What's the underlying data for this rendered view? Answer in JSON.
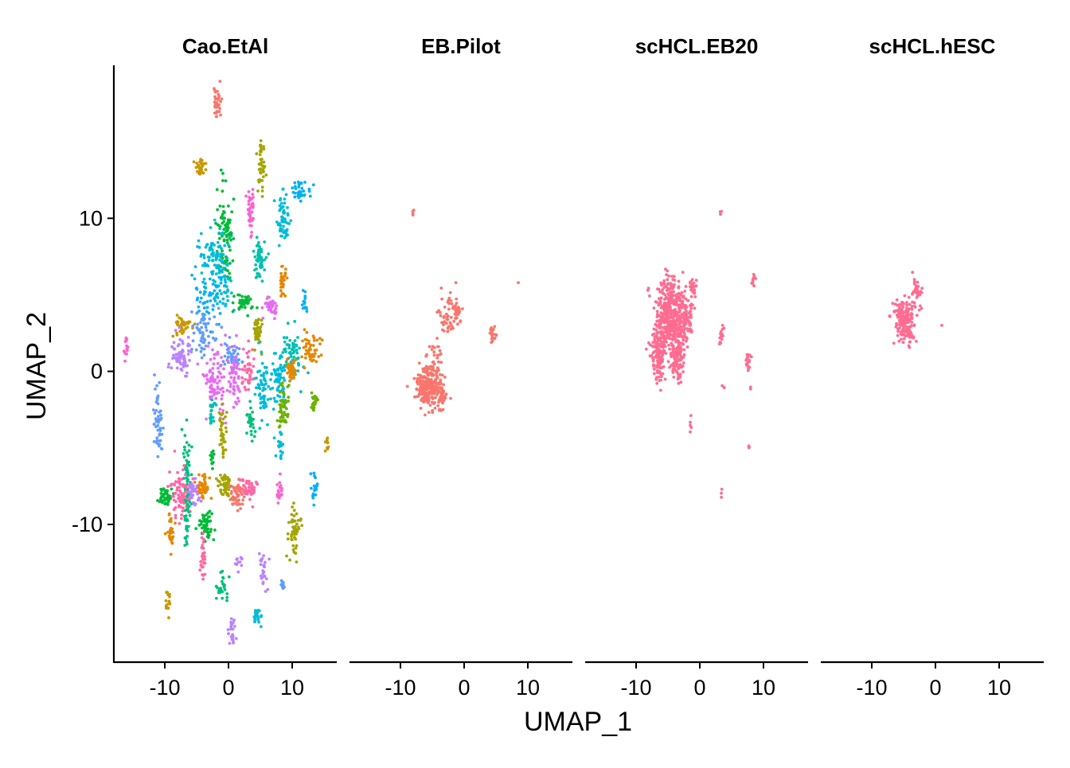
{
  "chart_data": {
    "type": "scatter",
    "xlabel": "UMAP_1",
    "ylabel": "UMAP_2",
    "xlim": [
      -18,
      17
    ],
    "ylim": [
      -19,
      20
    ],
    "x_ticks": [
      -10,
      0,
      10
    ],
    "x_tick_labels": [
      "-10",
      "0",
      "10"
    ],
    "y_ticks": [
      10,
      0,
      -10
    ],
    "y_tick_labels": [
      "10",
      "0",
      "-10"
    ],
    "grid": false,
    "legend": "none",
    "palette": [
      "#F8766D",
      "#E58700",
      "#C99800",
      "#A3A500",
      "#6BB100",
      "#00BA38",
      "#00BF7D",
      "#00C0AF",
      "#00BCD8",
      "#00B0F6",
      "#619CFF",
      "#B983FF",
      "#E76BF3",
      "#FD61D1",
      "#FF67A4"
    ],
    "panels": [
      {
        "title": "Cao.EtAl",
        "clusters": [
          {
            "x": -1.8,
            "y": 17.5,
            "sx": 0.3,
            "sy": 0.6,
            "n": 40,
            "color": "#F8766D"
          },
          {
            "x": -4.5,
            "y": 13.3,
            "sx": 0.6,
            "sy": 0.3,
            "n": 30,
            "color": "#C99800"
          },
          {
            "x": 5.2,
            "y": 13.5,
            "sx": 0.3,
            "sy": 0.8,
            "n": 40,
            "color": "#A3A500"
          },
          {
            "x": 11.0,
            "y": 11.8,
            "sx": 0.8,
            "sy": 0.3,
            "n": 40,
            "color": "#00B0F6"
          },
          {
            "x": 3.5,
            "y": 10.5,
            "sx": 0.3,
            "sy": 0.7,
            "n": 40,
            "color": "#FD61D1"
          },
          {
            "x": -0.5,
            "y": 9.0,
            "sx": 0.6,
            "sy": 1.5,
            "n": 90,
            "color": "#00BA38"
          },
          {
            "x": 8.5,
            "y": 9.8,
            "sx": 0.5,
            "sy": 0.8,
            "n": 60,
            "color": "#00BCD8"
          },
          {
            "x": 4.8,
            "y": 7.3,
            "sx": 0.5,
            "sy": 0.7,
            "n": 50,
            "color": "#00C0AF"
          },
          {
            "x": -2.5,
            "y": 7.5,
            "sx": 1.2,
            "sy": 1.0,
            "n": 70,
            "color": "#00BCD8"
          },
          {
            "x": -0.8,
            "y": 6.0,
            "sx": 0.7,
            "sy": 1.0,
            "n": 50,
            "color": "#00BCD8"
          },
          {
            "x": 8.5,
            "y": 6.0,
            "sx": 0.3,
            "sy": 0.6,
            "n": 30,
            "color": "#E58700"
          },
          {
            "x": -3.5,
            "y": 5.0,
            "sx": 1.5,
            "sy": 1.0,
            "n": 50,
            "color": "#00B0F6"
          },
          {
            "x": 2.5,
            "y": 4.5,
            "sx": 0.8,
            "sy": 0.3,
            "n": 40,
            "color": "#00BA38"
          },
          {
            "x": 6.5,
            "y": 4.2,
            "sx": 0.6,
            "sy": 0.3,
            "n": 40,
            "color": "#E76BF3"
          },
          {
            "x": 12.0,
            "y": 4.5,
            "sx": 0.2,
            "sy": 0.3,
            "n": 15,
            "color": "#00B0F6"
          },
          {
            "x": -7.0,
            "y": 3.0,
            "sx": 0.8,
            "sy": 0.3,
            "n": 40,
            "color": "#C99800"
          },
          {
            "x": -4.0,
            "y": 2.5,
            "sx": 1.0,
            "sy": 0.8,
            "n": 60,
            "color": "#619CFF"
          },
          {
            "x": 4.5,
            "y": 2.5,
            "sx": 0.3,
            "sy": 0.6,
            "n": 40,
            "color": "#A3A500"
          },
          {
            "x": -7.5,
            "y": 1.0,
            "sx": 0.8,
            "sy": 0.6,
            "n": 80,
            "color": "#B983FF"
          },
          {
            "x": 0.5,
            "y": 1.0,
            "sx": 0.8,
            "sy": 0.6,
            "n": 50,
            "color": "#619CFF"
          },
          {
            "x": 10.0,
            "y": 1.0,
            "sx": 0.8,
            "sy": 0.8,
            "n": 60,
            "color": "#00C0AF"
          },
          {
            "x": 13.0,
            "y": 1.5,
            "sx": 0.8,
            "sy": 0.5,
            "n": 50,
            "color": "#E58700"
          },
          {
            "x": -16.0,
            "y": 1.5,
            "sx": 0.2,
            "sy": 0.4,
            "n": 15,
            "color": "#FD61D1"
          },
          {
            "x": -2.0,
            "y": -0.8,
            "sx": 0.9,
            "sy": 1.2,
            "n": 90,
            "color": "#E76BF3"
          },
          {
            "x": 1.0,
            "y": -0.5,
            "sx": 0.5,
            "sy": 1.0,
            "n": 50,
            "color": "#E76BF3"
          },
          {
            "x": 5.5,
            "y": -1.0,
            "sx": 0.6,
            "sy": 1.2,
            "n": 60,
            "color": "#00BCD8"
          },
          {
            "x": 3.0,
            "y": 0.0,
            "sx": 0.5,
            "sy": 0.8,
            "n": 40,
            "color": "#FF67A4"
          },
          {
            "x": 8.0,
            "y": -0.5,
            "sx": 0.5,
            "sy": 1.0,
            "n": 60,
            "color": "#00BCD8"
          },
          {
            "x": 8.5,
            "y": -2.5,
            "sx": 0.5,
            "sy": 0.7,
            "n": 50,
            "color": "#6BB100"
          },
          {
            "x": 10.0,
            "y": 0.0,
            "sx": 0.5,
            "sy": 0.4,
            "n": 40,
            "color": "#E58700"
          },
          {
            "x": 13.5,
            "y": -2.0,
            "sx": 0.3,
            "sy": 0.4,
            "n": 20,
            "color": "#6BB100"
          },
          {
            "x": 15.5,
            "y": -4.8,
            "sx": 0.15,
            "sy": 0.3,
            "n": 10,
            "color": "#C99800"
          },
          {
            "x": -11.0,
            "y": -3.5,
            "sx": 0.4,
            "sy": 1.0,
            "n": 50,
            "color": "#619CFF"
          },
          {
            "x": -2.5,
            "y": -2.5,
            "sx": 0.3,
            "sy": 0.4,
            "n": 20,
            "color": "#00C0AF"
          },
          {
            "x": -1.0,
            "y": -4.0,
            "sx": 0.3,
            "sy": 0.8,
            "n": 40,
            "color": "#A3A500"
          },
          {
            "x": 3.5,
            "y": -3.5,
            "sx": 0.3,
            "sy": 0.8,
            "n": 30,
            "color": "#00BF7D"
          },
          {
            "x": 8.0,
            "y": -5.0,
            "sx": 0.3,
            "sy": 0.5,
            "n": 20,
            "color": "#00BCD8"
          },
          {
            "x": -6.5,
            "y": -6.5,
            "sx": 0.3,
            "sy": 1.2,
            "n": 50,
            "color": "#00BF7D"
          },
          {
            "x": -2.5,
            "y": -5.5,
            "sx": 0.2,
            "sy": 0.3,
            "n": 15,
            "color": "#00BA38"
          },
          {
            "x": -10.0,
            "y": -8.2,
            "sx": 0.6,
            "sy": 0.3,
            "n": 40,
            "color": "#00BA38"
          },
          {
            "x": -7.5,
            "y": -8.0,
            "sx": 0.8,
            "sy": 0.8,
            "n": 80,
            "color": "#FF67A4"
          },
          {
            "x": -5.5,
            "y": -8.0,
            "sx": 0.6,
            "sy": 0.5,
            "n": 40,
            "color": "#B983FF"
          },
          {
            "x": -4.0,
            "y": -7.5,
            "sx": 0.5,
            "sy": 0.4,
            "n": 40,
            "color": "#E58700"
          },
          {
            "x": -0.5,
            "y": -7.5,
            "sx": 0.6,
            "sy": 0.5,
            "n": 50,
            "color": "#A3A500"
          },
          {
            "x": 1.5,
            "y": -8.0,
            "sx": 0.6,
            "sy": 0.5,
            "n": 50,
            "color": "#F8766D"
          },
          {
            "x": 3.5,
            "y": -7.8,
            "sx": 0.6,
            "sy": 0.4,
            "n": 40,
            "color": "#FF67A4"
          },
          {
            "x": 8.0,
            "y": -7.8,
            "sx": 0.3,
            "sy": 0.5,
            "n": 20,
            "color": "#FD61D1"
          },
          {
            "x": 13.5,
            "y": -7.5,
            "sx": 0.3,
            "sy": 0.4,
            "n": 20,
            "color": "#00B0F6"
          },
          {
            "x": -9.0,
            "y": -10.8,
            "sx": 0.3,
            "sy": 0.6,
            "n": 30,
            "color": "#E58700"
          },
          {
            "x": -6.5,
            "y": -10.0,
            "sx": 0.2,
            "sy": 1.0,
            "n": 30,
            "color": "#00BF7D"
          },
          {
            "x": -3.5,
            "y": -10.0,
            "sx": 0.6,
            "sy": 0.5,
            "n": 50,
            "color": "#00BA38"
          },
          {
            "x": 10.5,
            "y": -10.5,
            "sx": 0.5,
            "sy": 0.8,
            "n": 50,
            "color": "#A3A500"
          },
          {
            "x": -4.0,
            "y": -12.5,
            "sx": 0.2,
            "sy": 0.8,
            "n": 30,
            "color": "#FF67A4"
          },
          {
            "x": -9.5,
            "y": -15.0,
            "sx": 0.2,
            "sy": 0.4,
            "n": 15,
            "color": "#C99800"
          },
          {
            "x": 1.5,
            "y": -12.5,
            "sx": 0.3,
            "sy": 0.2,
            "n": 12,
            "color": "#B983FF"
          },
          {
            "x": 5.5,
            "y": -13.0,
            "sx": 0.4,
            "sy": 0.6,
            "n": 25,
            "color": "#B983FF"
          },
          {
            "x": -1.0,
            "y": -14.0,
            "sx": 0.4,
            "sy": 0.5,
            "n": 25,
            "color": "#00BF7D"
          },
          {
            "x": 8.5,
            "y": -14.0,
            "sx": 0.2,
            "sy": 0.3,
            "n": 12,
            "color": "#619CFF"
          },
          {
            "x": 4.5,
            "y": -16.0,
            "sx": 0.4,
            "sy": 0.3,
            "n": 20,
            "color": "#00BCD8"
          },
          {
            "x": 0.5,
            "y": -17.0,
            "sx": 0.3,
            "sy": 0.5,
            "n": 25,
            "color": "#B983FF"
          }
        ]
      },
      {
        "title": "EB.Pilot",
        "clusters": [
          {
            "x": -5.5,
            "y": -1.0,
            "sx": 1.0,
            "sy": 0.6,
            "n": 250,
            "color": "#F8766D"
          },
          {
            "x": -3.5,
            "y": -1.7,
            "sx": 0.3,
            "sy": 0.4,
            "n": 40,
            "color": "#F8766D"
          },
          {
            "x": -4.5,
            "y": 1.2,
            "sx": 0.6,
            "sy": 0.6,
            "n": 25,
            "color": "#F8766D"
          },
          {
            "x": -2.5,
            "y": 3.5,
            "sx": 0.7,
            "sy": 0.6,
            "n": 40,
            "color": "#F8766D"
          },
          {
            "x": -1.0,
            "y": 4.0,
            "sx": 0.4,
            "sy": 0.4,
            "n": 30,
            "color": "#F8766D"
          },
          {
            "x": 4.5,
            "y": 2.5,
            "sx": 0.3,
            "sy": 0.3,
            "n": 20,
            "color": "#F8766D"
          },
          {
            "x": -8.0,
            "y": 10.3,
            "sx": 0.1,
            "sy": 0.1,
            "n": 4,
            "color": "#F8766D"
          },
          {
            "x": 8.5,
            "y": 5.8,
            "sx": 0.05,
            "sy": 0.05,
            "n": 1,
            "color": "#F8766D"
          },
          {
            "x": -1.3,
            "y": 5.8,
            "sx": 0.05,
            "sy": 0.05,
            "n": 1,
            "color": "#F8766D"
          }
        ]
      },
      {
        "title": "scHCL.EB20",
        "clusters": [
          {
            "x": -4.5,
            "y": 3.5,
            "sx": 1.3,
            "sy": 1.2,
            "n": 450,
            "color": "#FF6C91"
          },
          {
            "x": -6.5,
            "y": 1.0,
            "sx": 0.5,
            "sy": 0.9,
            "n": 120,
            "color": "#FF6C91"
          },
          {
            "x": -3.5,
            "y": 0.8,
            "sx": 0.6,
            "sy": 0.8,
            "n": 100,
            "color": "#FF6C91"
          },
          {
            "x": -2.0,
            "y": 3.5,
            "sx": 0.5,
            "sy": 0.8,
            "n": 60,
            "color": "#FF6C91"
          },
          {
            "x": -1.0,
            "y": 5.5,
            "sx": 0.3,
            "sy": 0.3,
            "n": 25,
            "color": "#FF6C91"
          },
          {
            "x": 3.5,
            "y": 2.4,
            "sx": 0.2,
            "sy": 0.3,
            "n": 15,
            "color": "#FF6C91"
          },
          {
            "x": 7.5,
            "y": 0.7,
            "sx": 0.3,
            "sy": 0.4,
            "n": 20,
            "color": "#FF6C91"
          },
          {
            "x": 8.5,
            "y": 6.0,
            "sx": 0.2,
            "sy": 0.2,
            "n": 12,
            "color": "#FF6C91"
          },
          {
            "x": 3.3,
            "y": 10.5,
            "sx": 0.1,
            "sy": 0.2,
            "n": 3,
            "color": "#FF6C91"
          },
          {
            "x": 3.3,
            "y": -1.0,
            "sx": 0.2,
            "sy": 0.1,
            "n": 3,
            "color": "#FF6C91"
          },
          {
            "x": 8.0,
            "y": -1.0,
            "sx": 0.1,
            "sy": 0.1,
            "n": 2,
            "color": "#FF6C91"
          },
          {
            "x": -1.5,
            "y": -3.3,
            "sx": 0.2,
            "sy": 0.3,
            "n": 5,
            "color": "#FF6C91"
          },
          {
            "x": 7.8,
            "y": -5.0,
            "sx": 0.1,
            "sy": 0.1,
            "n": 3,
            "color": "#FF6C91"
          },
          {
            "x": 3.5,
            "y": -8.0,
            "sx": 0.1,
            "sy": 0.3,
            "n": 3,
            "color": "#FF6C91"
          }
        ]
      },
      {
        "title": "scHCL.hESC",
        "clusters": [
          {
            "x": -5.0,
            "y": 3.5,
            "sx": 0.8,
            "sy": 0.6,
            "n": 150,
            "color": "#FF6C91"
          },
          {
            "x": -3.0,
            "y": 5.0,
            "sx": 0.4,
            "sy": 0.5,
            "n": 40,
            "color": "#FF6C91"
          },
          {
            "x": -4.0,
            "y": 2.5,
            "sx": 0.5,
            "sy": 0.5,
            "n": 30,
            "color": "#FF6C91"
          },
          {
            "x": 1.0,
            "y": 3.0,
            "sx": 0.05,
            "sy": 0.05,
            "n": 1,
            "color": "#FF6C91"
          }
        ]
      }
    ]
  }
}
